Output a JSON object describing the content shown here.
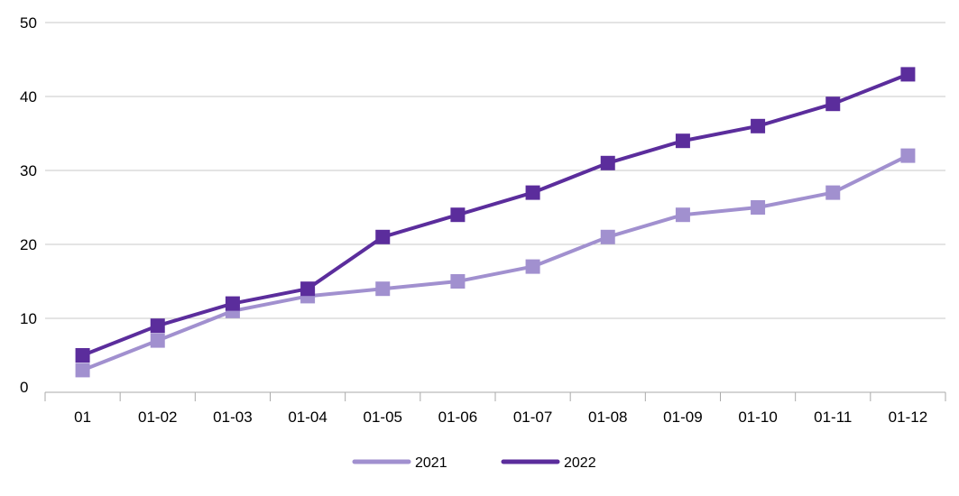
{
  "chart_data": {
    "type": "line",
    "categories": [
      "01",
      "01-02",
      "01-03",
      "01-04",
      "01-05",
      "01-06",
      "01-07",
      "01-08",
      "01-09",
      "01-10",
      "01-11",
      "01-12"
    ],
    "series": [
      {
        "name": "2021",
        "color": "#a190cf",
        "values": [
          3,
          7,
          11,
          13,
          14,
          15,
          17,
          21,
          24,
          25,
          27,
          32
        ]
      },
      {
        "name": "2022",
        "color": "#5b2d9c",
        "values": [
          5,
          9,
          12,
          14,
          21,
          24,
          27,
          31,
          34,
          36,
          39,
          43
        ]
      }
    ],
    "y_ticks": [
      0,
      10,
      20,
      30,
      40,
      50
    ],
    "ylim": [
      0,
      50
    ],
    "grid": "horizontal",
    "legend_position": "bottom-center",
    "marker": "square"
  }
}
